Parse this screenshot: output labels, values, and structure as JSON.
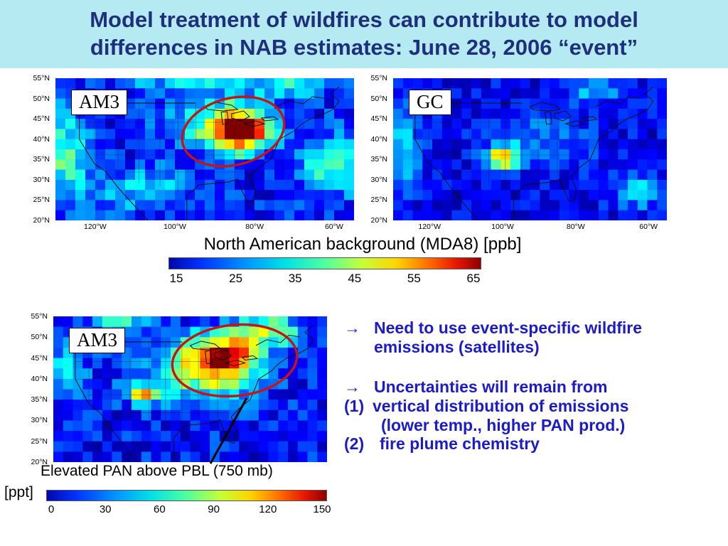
{
  "slide": {
    "title_line1": "Model treatment of wildfires can contribute to model",
    "title_line2": "differences in NAB estimates: June 28, 2006 “event”",
    "title_color": "#1e2f7d",
    "banner_bg": "#b5eaf3"
  },
  "maps": {
    "lat_ticks": [
      "55°N",
      "50°N",
      "45°N",
      "40°N",
      "35°N",
      "30°N",
      "25°N",
      "20°N"
    ],
    "lon_ticks": [
      "120°W",
      "100°W",
      "80°W",
      "60°W"
    ],
    "am3_top": {
      "label": "AM3"
    },
    "gc_top": {
      "label": "GC"
    },
    "am3_bottom": {
      "label": "AM3"
    }
  },
  "colorbar_top": {
    "title": "North American background (MDA8) [ppb]",
    "ticks": [
      "15",
      "25",
      "35",
      "45",
      "55",
      "65"
    ]
  },
  "colorbar_bottom": {
    "units_label": "[ppt]",
    "ticks": [
      "0",
      "30",
      "60",
      "90",
      "120",
      "150"
    ]
  },
  "caption_bottom": "Elevated PAN above PBL (750 mb)",
  "annotations": {
    "ellipse_color": "#cc1111",
    "arrow_color": "#000000"
  },
  "notes": {
    "text_color": "#1b1bc8",
    "bullet1_marker": "→",
    "bullet1_line1": "Need to use event-specific wildfire",
    "bullet1_line2": "emissions (satellites)",
    "bullet2_marker": "→",
    "bullet2_text": "Uncertainties will remain from",
    "item1_num": "(1)",
    "item1_text": "vertical distribution of emissions",
    "item1_sub": "(lower temp., higher PAN prod.)",
    "item2_num": "(2)",
    "item2_text": "fire plume chemistry"
  },
  "chart_data": [
    {
      "type": "heatmap",
      "title": "AM3 North American background ozone (MDA8), June 28 2006",
      "model": "AM3",
      "units": "ppb",
      "extent": {
        "lat": [
          20,
          55
        ],
        "lon": [
          -130,
          -55
        ]
      },
      "colorbar": {
        "label": "North American background (MDA8) [ppb]",
        "ticks": [
          15,
          25,
          35,
          45,
          55,
          65
        ]
      },
      "key_feature": "High NAB hotspot 55-65 ppb over Great Lakes / Ohio Valley, circled in red; background 15-25 ppb; 25-35 ppb patches along west coast and Atlantic",
      "approx_field": {
        "nx": 30,
        "ny": 14,
        "base": 0.14,
        "noise": 0.1,
        "seed": 1,
        "blobs": [
          {
            "x": 0.62,
            "y": 0.37,
            "rx": 0.09,
            "ry": 0.13,
            "a": 0.85
          },
          {
            "x": 0.56,
            "y": 0.32,
            "rx": 0.17,
            "ry": 0.18,
            "a": 0.3
          },
          {
            "x": 0.02,
            "y": 0.55,
            "rx": 0.09,
            "ry": 0.35,
            "a": 0.3
          },
          {
            "x": 0.3,
            "y": 0.78,
            "rx": 0.16,
            "ry": 0.14,
            "a": 0.22
          },
          {
            "x": 0.92,
            "y": 0.62,
            "rx": 0.1,
            "ry": 0.22,
            "a": 0.28
          },
          {
            "x": 0.47,
            "y": 0.02,
            "rx": 0.22,
            "ry": 0.1,
            "a": 0.22
          },
          {
            "x": 0.8,
            "y": 0.05,
            "rx": 0.1,
            "ry": 0.08,
            "a": 0.3
          }
        ]
      }
    },
    {
      "type": "heatmap",
      "title": "GC North American background ozone (MDA8), June 28 2006",
      "model": "GC",
      "units": "ppb",
      "extent": {
        "lat": [
          20,
          55
        ],
        "lon": [
          -130,
          -55
        ]
      },
      "colorbar": {
        "label": "North American background (MDA8) [ppb]",
        "ticks": [
          15,
          25,
          35,
          45,
          55,
          65
        ]
      },
      "key_feature": "Mostly 15-25 ppb; modest 35-45 ppb patch over central plains; no wildfire hotspot",
      "approx_field": {
        "nx": 28,
        "ny": 14,
        "base": 0.11,
        "noise": 0.08,
        "seed": 7,
        "blobs": [
          {
            "x": 0.4,
            "y": 0.56,
            "rx": 0.06,
            "ry": 0.09,
            "a": 0.52
          },
          {
            "x": 0.55,
            "y": 0.45,
            "rx": 0.18,
            "ry": 0.2,
            "a": 0.15
          },
          {
            "x": 0.03,
            "y": 0.5,
            "rx": 0.07,
            "ry": 0.3,
            "a": 0.22
          },
          {
            "x": 0.9,
            "y": 0.8,
            "rx": 0.1,
            "ry": 0.12,
            "a": 0.22
          },
          {
            "x": 0.75,
            "y": 0.1,
            "rx": 0.12,
            "ry": 0.08,
            "a": 0.18
          }
        ]
      }
    },
    {
      "type": "heatmap",
      "title": "AM3 PAN above PBL (750 mb), June 28 2006",
      "model": "AM3",
      "units": "ppt",
      "extent": {
        "lat": [
          20,
          55
        ],
        "lon": [
          -130,
          -55
        ]
      },
      "colorbar": {
        "label": "[ppt]",
        "ticks": [
          0,
          30,
          60,
          90,
          120,
          150
        ]
      },
      "key_feature": "Elevated PAN 90-150 ppt over upper Midwest / Great Lakes, circled in red with pointer to caption",
      "approx_field": {
        "nx": 28,
        "ny": 14,
        "base": 0.13,
        "noise": 0.1,
        "seed": 3,
        "blobs": [
          {
            "x": 0.62,
            "y": 0.28,
            "rx": 0.13,
            "ry": 0.15,
            "a": 0.72
          },
          {
            "x": 0.52,
            "y": 0.42,
            "rx": 0.22,
            "ry": 0.22,
            "a": 0.28
          },
          {
            "x": 0.78,
            "y": 0.1,
            "rx": 0.14,
            "ry": 0.1,
            "a": 0.4
          },
          {
            "x": 0.04,
            "y": 0.3,
            "rx": 0.08,
            "ry": 0.28,
            "a": 0.18
          },
          {
            "x": 0.33,
            "y": 0.55,
            "rx": 0.04,
            "ry": 0.06,
            "a": 0.55
          },
          {
            "x": 0.25,
            "y": 0.05,
            "rx": 0.1,
            "ry": 0.07,
            "a": 0.3
          }
        ]
      }
    }
  ]
}
